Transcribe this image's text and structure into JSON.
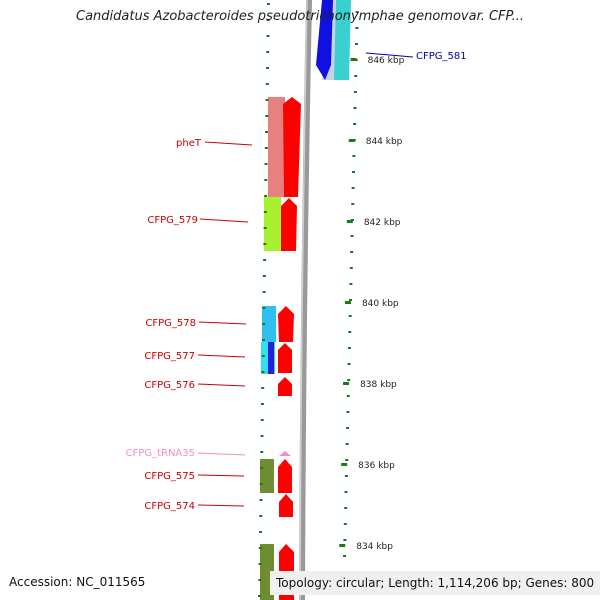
{
  "title": "Candidatus Azobacteroides pseudotrichonymphae genomovar. CFP...",
  "footer": {
    "accession": "Accession: NC_011565",
    "stats": "Topology: circular; Length: 1,114,206 bp; Genes: 800"
  },
  "kbp_ticks": [
    {
      "label": "846 kbp",
      "kbp": 846
    },
    {
      "label": "844 kbp",
      "kbp": 844
    },
    {
      "label": "842 kbp",
      "kbp": 842
    },
    {
      "label": "840 kbp",
      "kbp": 840
    },
    {
      "label": "838 kbp",
      "kbp": 838
    },
    {
      "label": "836 kbp",
      "kbp": 836
    },
    {
      "label": "834 kbp",
      "kbp": 834
    }
  ],
  "gene_labels": [
    {
      "text": "CFPG_581",
      "color": "#0000aa",
      "side": "right"
    },
    {
      "text": "pheT",
      "color": "#cc0000",
      "side": "left"
    },
    {
      "text": "CFPG_579",
      "color": "#cc0000",
      "side": "left"
    },
    {
      "text": "CFPG_578",
      "color": "#cc0000",
      "side": "left"
    },
    {
      "text": "CFPG_577",
      "color": "#cc0000",
      "side": "left"
    },
    {
      "text": "CFPG_576",
      "color": "#cc0000",
      "side": "left"
    },
    {
      "text": "CFPG_tRNA35",
      "color": "#f090c0",
      "side": "left"
    },
    {
      "text": "CFPG_575",
      "color": "#cc0000",
      "side": "left"
    },
    {
      "text": "CFPG_574",
      "color": "#cc0000",
      "side": "left"
    }
  ],
  "colors": {
    "backbone": "#888888",
    "tick": "#1a7a1a",
    "cds": "#ff0000",
    "rna": "#f090c0"
  }
}
